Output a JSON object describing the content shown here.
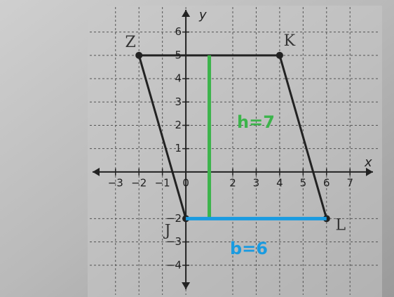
{
  "chart_data": {
    "type": "line",
    "x_label": "x",
    "y_label": "y",
    "x": [
      -2,
      4,
      6,
      0
    ],
    "values": [
      5,
      5,
      -2,
      -2
    ],
    "point_labels": [
      "Z",
      "K",
      "L",
      "J"
    ],
    "color": "#222222",
    "xlim": [
      -3.8,
      7.8
    ],
    "ylim": [
      -4.7,
      6.5
    ],
    "xticks": [
      {
        "value": -3,
        "label": "−3"
      },
      {
        "value": -2,
        "label": "−2"
      },
      {
        "value": -1,
        "label": "−1"
      },
      0,
      2,
      3,
      4,
      5,
      6,
      7
    ],
    "yticks": [
      {
        "value": -4,
        "label": "−4"
      },
      {
        "value": -3,
        "label": "−3"
      },
      {
        "value": -2,
        "label": "−2"
      },
      1,
      2,
      3,
      4,
      5,
      6
    ],
    "grid": true,
    "annotations": [
      {
        "label": "h=7",
        "color": "#3cb44b",
        "x": [
          1,
          1
        ],
        "y": [
          -2,
          5
        ]
      },
      {
        "label": "b=6",
        "color": "#1a9be0",
        "x": [
          0,
          6
        ],
        "y": [
          -2,
          -2
        ]
      }
    ]
  }
}
